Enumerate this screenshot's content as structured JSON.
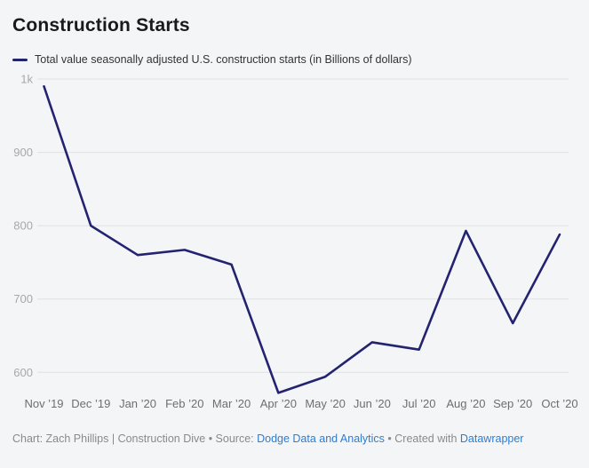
{
  "header": {
    "title": "Construction Starts",
    "legend_label": "Total value seasonally adjusted U.S. construction starts (in Billions of dollars)"
  },
  "chart_data": {
    "type": "line",
    "title": "Construction Starts",
    "x": [
      "Nov ’19",
      "Dec ’19",
      "Jan ’20",
      "Feb ’20",
      "Mar ’20",
      "Apr ’20",
      "May ’20",
      "Jun ’20",
      "Jul ’20",
      "Aug ’20",
      "Sep ’20",
      "Oct ’20"
    ],
    "series": [
      {
        "name": "Total value seasonally adjusted U.S. construction starts (in Billions of dollars)",
        "values": [
          990,
          800,
          760,
          767,
          747,
          572,
          594,
          641,
          631,
          793,
          667,
          788
        ]
      }
    ],
    "xlabel": "",
    "ylabel": "",
    "y_ticks": [
      {
        "value": 1000,
        "label": "1k"
      },
      {
        "value": 900,
        "label": "900"
      },
      {
        "value": 800,
        "label": "800"
      },
      {
        "value": 700,
        "label": "700"
      },
      {
        "value": 600,
        "label": "600"
      }
    ],
    "ylim": [
      565,
      1000
    ],
    "grid": "horizontal",
    "legend_position": "top-left",
    "line_color": "#232370"
  },
  "footer": {
    "credit_prefix": "Chart: Zach Phillips | Construction Dive • Source: ",
    "source_link_label": "Dodge Data and Analytics",
    "separator": " • Created with ",
    "tool_link_label": "Datawrapper"
  },
  "colors": {
    "background": "#f4f5f7",
    "title_text": "#1a1a1a",
    "legend_text": "#333333",
    "line": "#232370",
    "gridline": "#e0e1e4",
    "y_tick_label": "#a8a8a8",
    "x_tick_label": "#6e6e6e",
    "footer_text": "#8a8a8a",
    "link": "#2d7dd2"
  }
}
